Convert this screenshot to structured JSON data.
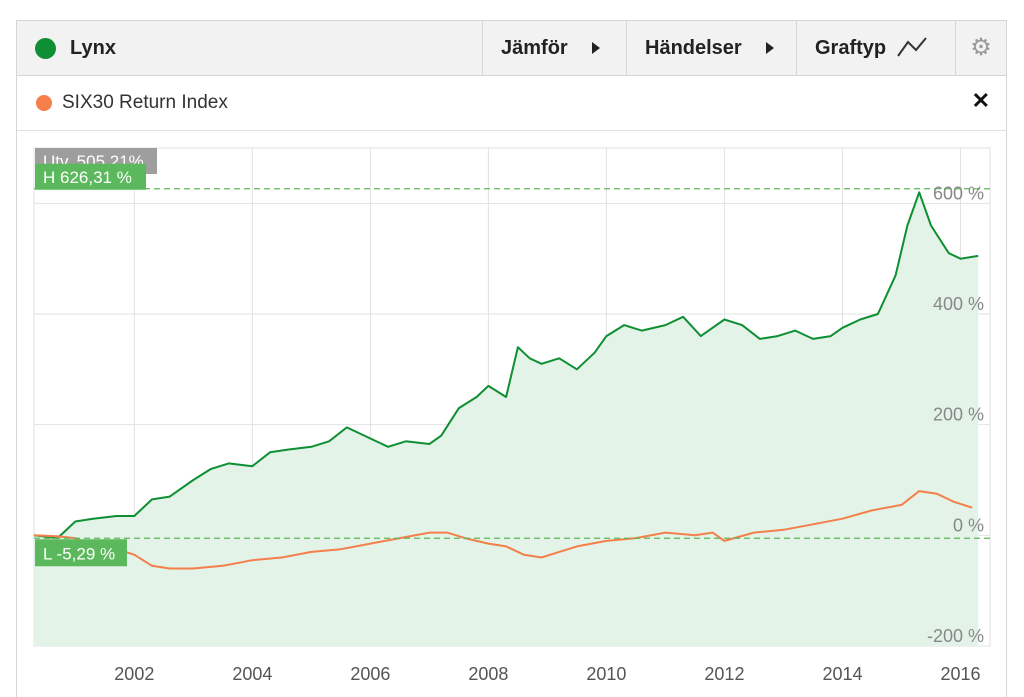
{
  "toolbar": {
    "main_series_label": "Lynx",
    "compare_label": "Jämför",
    "events_label": "Händelser",
    "charttype_label": "Graftyp"
  },
  "legend": {
    "comparison_label": "SIX30 Return Index"
  },
  "colors": {
    "lynx": "#0e8f33",
    "six30": "#f47f4a",
    "area_fill": "#e3f3e7",
    "marker_green": "#5cb85c",
    "change_badge": "#9e9e9e"
  },
  "icons": [
    "triangle-right-icon",
    "line-chart-icon",
    "gear-icon",
    "close-icon"
  ],
  "chart_data": {
    "type": "line",
    "x_label": "",
    "y_label": "",
    "ylim": [
      -200,
      700
    ],
    "xlim": [
      2000.3,
      2016.5
    ],
    "y_ticks": [
      -200,
      0,
      200,
      400,
      600
    ],
    "y_tick_labels": [
      "-200 %",
      "0 %",
      "200 %",
      "400 %",
      "600 %"
    ],
    "x_ticks": [
      2002,
      2004,
      2006,
      2008,
      2010,
      2012,
      2014,
      2016
    ],
    "x_tick_labels": [
      "2002",
      "2004",
      "2006",
      "2008",
      "2010",
      "2012",
      "2014",
      "2016"
    ],
    "grid": true,
    "change_label": "Utv. 505,21%",
    "high_label": "H 626,31 %",
    "low_label": "L -5,29 %",
    "high_value": 626.31,
    "low_value": -5.29,
    "series": [
      {
        "name": "Lynx",
        "area": true,
        "x": [
          2000.3,
          2000.7,
          2001.0,
          2001.3,
          2001.7,
          2002.0,
          2002.3,
          2002.6,
          2003.0,
          2003.3,
          2003.6,
          2004.0,
          2004.3,
          2004.6,
          2005.0,
          2005.3,
          2005.6,
          2006.0,
          2006.3,
          2006.6,
          2007.0,
          2007.2,
          2007.5,
          2007.8,
          2008.0,
          2008.3,
          2008.5,
          2008.7,
          2008.9,
          2009.2,
          2009.5,
          2009.8,
          2010.0,
          2010.3,
          2010.6,
          2011.0,
          2011.3,
          2011.6,
          2012.0,
          2012.3,
          2012.6,
          2012.9,
          2013.2,
          2013.5,
          2013.8,
          2014.0,
          2014.3,
          2014.6,
          2014.9,
          2015.1,
          2015.3,
          2015.5,
          2015.8,
          2016.0,
          2016.3
        ],
        "values": [
          0,
          -5,
          25,
          30,
          35,
          35,
          65,
          70,
          100,
          120,
          130,
          125,
          150,
          155,
          160,
          170,
          195,
          175,
          160,
          170,
          165,
          180,
          230,
          250,
          270,
          250,
          340,
          320,
          310,
          320,
          300,
          330,
          360,
          380,
          370,
          380,
          395,
          360,
          390,
          380,
          355,
          360,
          370,
          355,
          360,
          375,
          390,
          400,
          470,
          560,
          620,
          560,
          510,
          500,
          505
        ]
      },
      {
        "name": "SIX30 Return Index",
        "area": false,
        "x": [
          2000.3,
          2000.7,
          2001.0,
          2001.3,
          2001.7,
          2002.0,
          2002.3,
          2002.6,
          2003.0,
          2003.5,
          2004.0,
          2004.5,
          2005.0,
          2005.5,
          2006.0,
          2006.5,
          2007.0,
          2007.3,
          2007.6,
          2008.0,
          2008.3,
          2008.6,
          2008.9,
          2009.2,
          2009.5,
          2010.0,
          2010.5,
          2011.0,
          2011.5,
          2011.8,
          2012.0,
          2012.5,
          2013.0,
          2013.5,
          2014.0,
          2014.5,
          2015.0,
          2015.3,
          2015.6,
          2015.9,
          2016.2
        ],
        "values": [
          0,
          -2,
          -5,
          -20,
          -25,
          -35,
          -55,
          -60,
          -60,
          -55,
          -45,
          -40,
          -30,
          -25,
          -15,
          -5,
          5,
          5,
          -5,
          -15,
          -20,
          -35,
          -40,
          -30,
          -20,
          -10,
          -5,
          5,
          0,
          5,
          -10,
          5,
          10,
          20,
          30,
          45,
          55,
          80,
          75,
          60,
          50
        ]
      }
    ]
  }
}
